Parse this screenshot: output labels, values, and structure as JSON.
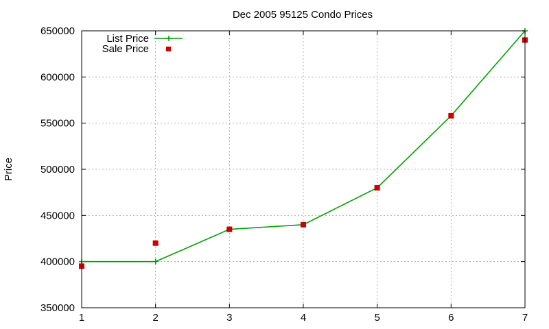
{
  "chart_data": {
    "type": "line",
    "title": "Dec 2005 95125 Condo Prices",
    "xlabel": "",
    "ylabel": "Price",
    "xlim": [
      1,
      7
    ],
    "ylim": [
      350000,
      650000
    ],
    "x_ticks": [
      "1",
      "2",
      "3",
      "4",
      "5",
      "6",
      "7"
    ],
    "y_ticks": [
      "350000",
      "400000",
      "450000",
      "500000",
      "550000",
      "600000",
      "650000"
    ],
    "grid": true,
    "legend_position": "top-left",
    "series": [
      {
        "name": "List Price",
        "style": "line-with-plus-markers",
        "color": "#00a000",
        "x": [
          1,
          2,
          3,
          4,
          5,
          6,
          7
        ],
        "values": [
          400000,
          400000,
          435000,
          440000,
          480000,
          558000,
          650000
        ]
      },
      {
        "name": "Sale Price",
        "style": "square-markers",
        "color": "#cc0000",
        "x": [
          1,
          2,
          3,
          4,
          5,
          6,
          7
        ],
        "values": [
          395000,
          420000,
          435000,
          440000,
          480000,
          558000,
          640000
        ]
      }
    ]
  }
}
